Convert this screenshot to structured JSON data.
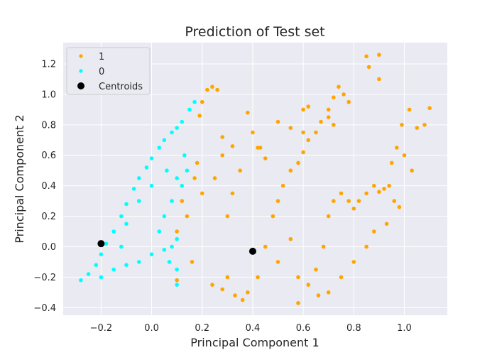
{
  "chart_data": {
    "type": "scatter",
    "title": "Prediction of Test set",
    "xlabel": "Principal Component 1",
    "ylabel": "Principal Component 2",
    "xlim": [
      -0.35,
      1.17
    ],
    "ylim": [
      -0.45,
      1.34
    ],
    "xticks": [
      "−0.2",
      "0.0",
      "0.2",
      "0.4",
      "0.6",
      "0.8",
      "1.0"
    ],
    "xtick_values": [
      -0.2,
      0.0,
      0.2,
      0.4,
      0.6,
      0.8,
      1.0
    ],
    "yticks": [
      "−0.4",
      "−0.2",
      "0.0",
      "0.2",
      "0.4",
      "0.6",
      "0.8",
      "1.0",
      "1.2"
    ],
    "ytick_values": [
      -0.4,
      -0.2,
      0.0,
      0.2,
      0.4,
      0.6,
      0.8,
      1.0,
      1.2
    ],
    "grid": true,
    "legend_position": "upper-left",
    "series": [
      {
        "name": "1",
        "color": "#ffa500",
        "points": [
          [
            0.1,
            -0.22
          ],
          [
            0.1,
            0.1
          ],
          [
            0.12,
            0.3
          ],
          [
            0.14,
            0.2
          ],
          [
            0.16,
            -0.1
          ],
          [
            0.17,
            0.45
          ],
          [
            0.18,
            0.55
          ],
          [
            0.19,
            0.86
          ],
          [
            0.2,
            0.95
          ],
          [
            0.22,
            1.03
          ],
          [
            0.24,
            1.05
          ],
          [
            0.26,
            1.03
          ],
          [
            0.2,
            0.35
          ],
          [
            0.25,
            0.45
          ],
          [
            0.28,
            0.6
          ],
          [
            0.3,
            0.2
          ],
          [
            0.3,
            -0.2
          ],
          [
            0.32,
            0.35
          ],
          [
            0.35,
            0.5
          ],
          [
            0.38,
            0.88
          ],
          [
            0.4,
            0.75
          ],
          [
            0.42,
            0.65
          ],
          [
            0.24,
            -0.25
          ],
          [
            0.28,
            -0.28
          ],
          [
            0.33,
            -0.32
          ],
          [
            0.36,
            -0.35
          ],
          [
            0.38,
            -0.3
          ],
          [
            0.42,
            -0.2
          ],
          [
            0.45,
            0.0
          ],
          [
            0.48,
            0.2
          ],
          [
            0.5,
            0.3
          ],
          [
            0.52,
            0.4
          ],
          [
            0.55,
            0.5
          ],
          [
            0.58,
            0.55
          ],
          [
            0.6,
            0.62
          ],
          [
            0.62,
            0.7
          ],
          [
            0.65,
            0.75
          ],
          [
            0.67,
            0.82
          ],
          [
            0.7,
            0.9
          ],
          [
            0.72,
            0.98
          ],
          [
            0.74,
            1.05
          ],
          [
            0.76,
            1.0
          ],
          [
            0.78,
            0.95
          ],
          [
            0.6,
            0.9
          ],
          [
            0.62,
            0.92
          ],
          [
            0.7,
            0.85
          ],
          [
            0.72,
            0.8
          ],
          [
            0.5,
            -0.1
          ],
          [
            0.55,
            0.05
          ],
          [
            0.58,
            -0.2
          ],
          [
            0.62,
            -0.25
          ],
          [
            0.65,
            -0.15
          ],
          [
            0.68,
            0.0
          ],
          [
            0.7,
            0.2
          ],
          [
            0.72,
            0.3
          ],
          [
            0.75,
            0.35
          ],
          [
            0.78,
            0.3
          ],
          [
            0.8,
            0.25
          ],
          [
            0.82,
            0.3
          ],
          [
            0.85,
            0.35
          ],
          [
            0.88,
            0.4
          ],
          [
            0.9,
            0.36
          ],
          [
            0.92,
            0.38
          ],
          [
            0.94,
            0.4
          ],
          [
            0.96,
            0.3
          ],
          [
            0.98,
            0.26
          ],
          [
            0.93,
            0.15
          ],
          [
            0.88,
            0.1
          ],
          [
            0.85,
            0.0
          ],
          [
            0.8,
            -0.1
          ],
          [
            0.75,
            -0.2
          ],
          [
            0.7,
            -0.3
          ],
          [
            0.66,
            -0.32
          ],
          [
            0.58,
            -0.37
          ],
          [
            0.85,
            1.25
          ],
          [
            0.9,
            1.26
          ],
          [
            0.95,
            0.55
          ],
          [
            0.97,
            0.65
          ],
          [
            1.0,
            0.6
          ],
          [
            1.03,
            0.5
          ],
          [
            1.05,
            0.78
          ],
          [
            1.08,
            0.8
          ],
          [
            1.1,
            0.91
          ],
          [
            0.99,
            0.8
          ],
          [
            1.02,
            0.9
          ],
          [
            0.43,
            0.65
          ],
          [
            0.45,
            0.58
          ],
          [
            0.5,
            0.82
          ],
          [
            0.55,
            0.78
          ],
          [
            0.6,
            0.75
          ],
          [
            0.28,
            0.72
          ],
          [
            0.32,
            0.66
          ],
          [
            0.9,
            1.1
          ],
          [
            0.86,
            1.18
          ]
        ]
      },
      {
        "name": "0",
        "color": "#00ffff",
        "points": [
          [
            -0.28,
            -0.22
          ],
          [
            -0.25,
            -0.18
          ],
          [
            -0.22,
            -0.12
          ],
          [
            -0.2,
            -0.05
          ],
          [
            -0.18,
            0.02
          ],
          [
            -0.15,
            0.1
          ],
          [
            -0.12,
            0.2
          ],
          [
            -0.1,
            0.28
          ],
          [
            -0.07,
            0.38
          ],
          [
            -0.05,
            0.45
          ],
          [
            -0.02,
            0.52
          ],
          [
            0.0,
            0.58
          ],
          [
            0.03,
            0.65
          ],
          [
            0.05,
            0.7
          ],
          [
            0.08,
            0.75
          ],
          [
            0.1,
            0.78
          ],
          [
            0.12,
            0.82
          ],
          [
            0.15,
            0.9
          ],
          [
            0.17,
            0.95
          ],
          [
            -0.2,
            -0.2
          ],
          [
            -0.15,
            -0.15
          ],
          [
            -0.1,
            -0.12
          ],
          [
            -0.05,
            -0.1
          ],
          [
            0.0,
            -0.05
          ],
          [
            0.05,
            -0.02
          ],
          [
            0.08,
            0.0
          ],
          [
            0.1,
            0.05
          ],
          [
            0.1,
            -0.15
          ],
          [
            0.1,
            -0.25
          ],
          [
            0.05,
            0.2
          ],
          [
            0.08,
            0.3
          ],
          [
            0.1,
            0.45
          ],
          [
            0.12,
            0.4
          ],
          [
            0.14,
            0.5
          ],
          [
            0.13,
            0.6
          ],
          [
            0.06,
            0.5
          ],
          [
            0.0,
            0.4
          ],
          [
            -0.05,
            0.3
          ],
          [
            -0.1,
            0.15
          ],
          [
            -0.12,
            0.0
          ],
          [
            0.03,
            0.1
          ],
          [
            0.07,
            -0.1
          ]
        ]
      }
    ],
    "centroids": {
      "name": "Centroids",
      "color": "#000000",
      "points": [
        [
          -0.2,
          0.02
        ],
        [
          0.4,
          -0.03
        ]
      ]
    }
  }
}
